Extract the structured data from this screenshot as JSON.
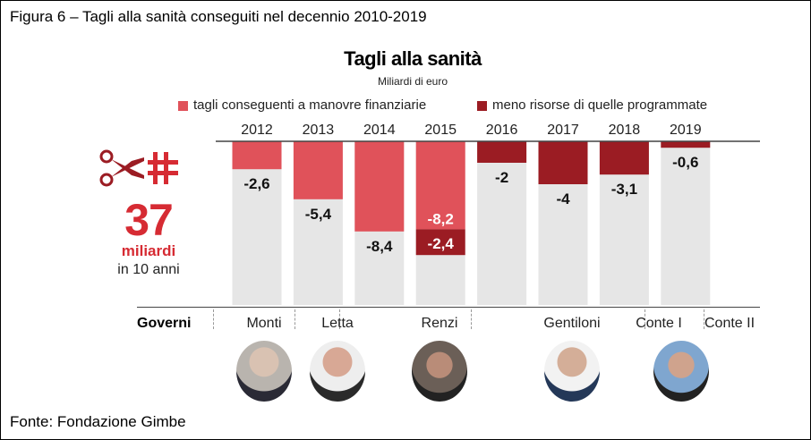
{
  "figure_title": "Figura 6 – Tagli alla sanità conseguiti nel decennio 2010-2019",
  "source": "Fonte: Fondazione Gimbe",
  "summary": {
    "value": "37",
    "unit": "miliardi",
    "period": "in 10 anni"
  },
  "governments_label": "Governi",
  "governments": [
    {
      "name": "Monti",
      "photo_color": "#b9b4ae"
    },
    {
      "name": "Letta",
      "photo_color": "#c9a99a"
    },
    {
      "name": "Renzi",
      "photo_color": "#6b5f57"
    },
    {
      "name": "Gentiloni",
      "photo_color": "#c4b7a6"
    },
    {
      "name": "Conte I",
      "photo_color": "#7fa6cf"
    },
    {
      "name": "Conte II",
      "photo_color": ""
    }
  ],
  "colors": {
    "primary": "#e0525a",
    "secondary": "#9b1c23",
    "background_bar": "#e6e6e6"
  },
  "chart_data": {
    "type": "bar",
    "stacked": true,
    "title": "Tagli alla sanità",
    "subtitle": "Miliardi di euro",
    "categories": [
      "2012",
      "2013",
      "2014",
      "2015",
      "2016",
      "2017",
      "2018",
      "2019"
    ],
    "series": [
      {
        "name": "tagli conseguenti a manovre finanziarie",
        "values": [
          -2.6,
          -5.4,
          -8.4,
          -8.2,
          0,
          0,
          0,
          0
        ],
        "labels": [
          "-2,6",
          "-5,4",
          "-8,4",
          "-8,2",
          "",
          "",
          "",
          ""
        ]
      },
      {
        "name": "meno risorse di quelle programmate",
        "values": [
          0,
          0,
          0,
          -2.4,
          -2,
          -4,
          -3.1,
          -0.6
        ],
        "labels": [
          "",
          "",
          "",
          "-2,4",
          "-2",
          "-4",
          "-3,1",
          "-0,6"
        ]
      }
    ],
    "legend": "top",
    "ylim": [
      -15,
      0
    ]
  }
}
